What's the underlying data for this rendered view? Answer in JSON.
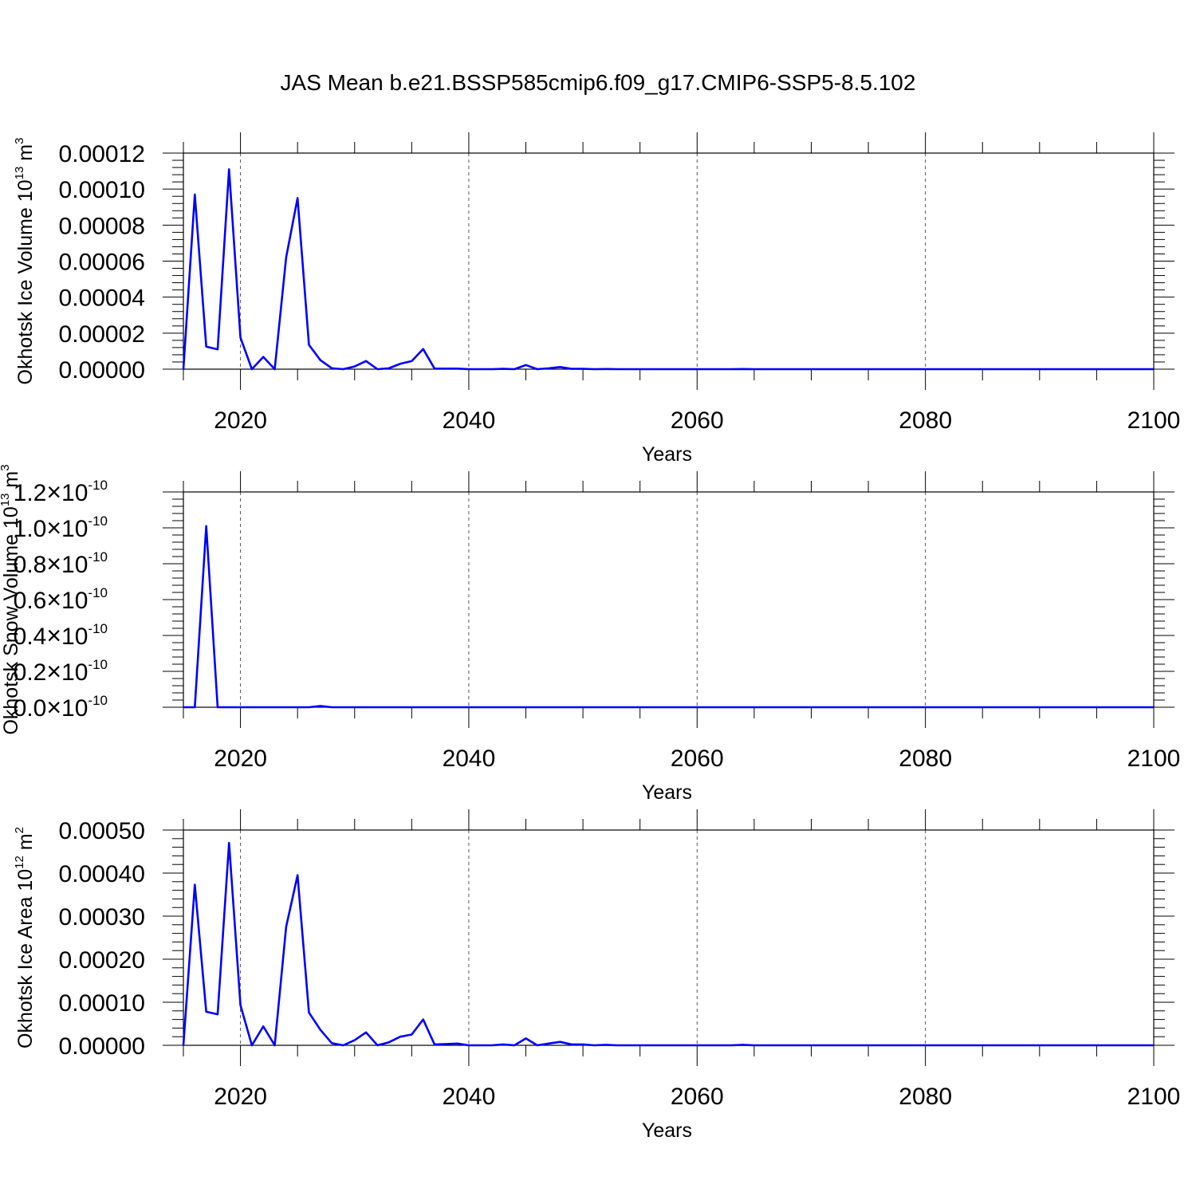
{
  "title": "JAS Mean b.e21.BSSP585cmip6.f09_g17.CMIP6-SSP5-8.5.102",
  "colors": {
    "line": "#0000ff",
    "axis": "#000000",
    "grid": "#000000"
  },
  "chart_data": [
    {
      "type": "line",
      "xlabel": "Years",
      "ylabel": {
        "text": "Okhotsk Ice Volume 10",
        "exp": "13",
        "unit": " m",
        "unit_exp": "3"
      },
      "xlim": [
        2015,
        2100
      ],
      "ylim": [
        0,
        0.00012
      ],
      "xticks": [
        "2020",
        "2040",
        "2060",
        "2080",
        "2100"
      ],
      "yticks": [
        "0.00000",
        "0.00002",
        "0.00004",
        "0.00006",
        "0.00008",
        "0.00010",
        "0.00012"
      ],
      "grid": "dashed vertical lines at major x ticks",
      "x": [
        2015,
        2016,
        2017,
        2018,
        2019,
        2020,
        2021,
        2022,
        2023,
        2024,
        2025,
        2026,
        2027,
        2028,
        2029,
        2030,
        2031,
        2032,
        2033,
        2034,
        2035,
        2036,
        2037,
        2038,
        2039,
        2040,
        2041,
        2042,
        2043,
        2044,
        2045,
        2046,
        2047,
        2048,
        2049,
        2050,
        2051,
        2052,
        2053,
        2054,
        2055,
        2056,
        2057,
        2058,
        2059,
        2060,
        2061,
        2062,
        2063,
        2064,
        2065,
        2066,
        2067,
        2068,
        2069,
        2070,
        2071,
        2072,
        2073,
        2074,
        2075,
        2076,
        2077,
        2078,
        2079,
        2080,
        2081,
        2082,
        2083,
        2084,
        2085,
        2086,
        2087,
        2088,
        2089,
        2090,
        2091,
        2092,
        2093,
        2094,
        2095,
        2096,
        2097,
        2098,
        2099,
        2100
      ],
      "series": [
        {
          "values": [
            0,
            9.7e-05,
            1.25e-05,
            1.1e-05,
            0.000111,
            1.75e-05,
            0,
            6.8e-06,
            0,
            6.2e-05,
            9.5e-05,
            1.35e-05,
            5e-06,
            5e-07,
            0,
            1.5e-06,
            4.5e-06,
            0,
            5e-07,
            3e-06,
            4.5e-06,
            1.12e-05,
            3e-07,
            3e-07,
            3e-07,
            0,
            0,
            0,
            2e-07,
            0,
            2.3e-06,
            0,
            5e-07,
            1.2e-06,
            2e-07,
            2e-07,
            0,
            1e-07,
            0,
            0,
            0,
            0,
            0,
            0,
            0,
            0,
            0,
            0,
            0,
            1e-07,
            0,
            0,
            0,
            0,
            0,
            0,
            0,
            0,
            0,
            0,
            0,
            0,
            0,
            0,
            0,
            0,
            0,
            0,
            0,
            0,
            0,
            0,
            0,
            0,
            0,
            0,
            0,
            0,
            0,
            0,
            0,
            0,
            0,
            0,
            0,
            0
          ]
        }
      ]
    },
    {
      "type": "line",
      "xlabel": "Years",
      "ylabel": {
        "text": "Okhotsk Snow Volume 10",
        "exp": "13",
        "unit": " m",
        "unit_exp": "3"
      },
      "xlim": [
        2015,
        2100
      ],
      "ylim": [
        0,
        1.2e-10
      ],
      "xticks": [
        "2020",
        "2040",
        "2060",
        "2080",
        "2100"
      ],
      "yticks": [
        {
          "mant": "0.0",
          "sep": "×",
          "base": "10",
          "exp": "-10"
        },
        {
          "mant": "0.2",
          "sep": "×",
          "base": "10",
          "exp": "-10"
        },
        {
          "mant": "0.4",
          "sep": "×",
          "base": "10",
          "exp": "-10"
        },
        {
          "mant": "0.6",
          "sep": "×",
          "base": "10",
          "exp": "-10"
        },
        {
          "mant": "0.8",
          "sep": "×",
          "base": "10",
          "exp": "-10"
        },
        {
          "mant": "1.0",
          "sep": "×",
          "base": "10",
          "exp": "-10"
        },
        {
          "mant": "1.2",
          "sep": "×",
          "base": "10",
          "exp": "-10"
        }
      ],
      "grid": "dashed vertical lines at major x ticks",
      "x": [
        2015,
        2016,
        2017,
        2018,
        2019,
        2020,
        2021,
        2022,
        2023,
        2024,
        2025,
        2026,
        2027,
        2028,
        2029,
        2030,
        2031,
        2032,
        2033,
        2034,
        2035,
        2036,
        2037,
        2038,
        2039,
        2040,
        2041,
        2042,
        2043,
        2044,
        2045,
        2046,
        2047,
        2048,
        2049,
        2050,
        2051,
        2052,
        2053,
        2054,
        2055,
        2056,
        2057,
        2058,
        2059,
        2060,
        2061,
        2062,
        2063,
        2064,
        2065,
        2066,
        2067,
        2068,
        2069,
        2070,
        2071,
        2072,
        2073,
        2074,
        2075,
        2076,
        2077,
        2078,
        2079,
        2080,
        2081,
        2082,
        2083,
        2084,
        2085,
        2086,
        2087,
        2088,
        2089,
        2090,
        2091,
        2092,
        2093,
        2094,
        2095,
        2096,
        2097,
        2098,
        2099,
        2100
      ],
      "series": [
        {
          "values": [
            0,
            0,
            1.01e-10,
            0,
            0,
            0,
            0,
            0,
            0,
            0,
            0,
            0,
            7e-13,
            0,
            0,
            0,
            0,
            0,
            0,
            0,
            0,
            0,
            0,
            0,
            0,
            0,
            0,
            0,
            0,
            0,
            0,
            0,
            0,
            0,
            0,
            0,
            0,
            0,
            0,
            0,
            0,
            0,
            0,
            0,
            0,
            0,
            0,
            0,
            0,
            0,
            0,
            0,
            0,
            0,
            0,
            0,
            0,
            0,
            0,
            0,
            0,
            0,
            0,
            0,
            0,
            0,
            0,
            0,
            0,
            0,
            0,
            0,
            0,
            0,
            0,
            0,
            0,
            0,
            0,
            0,
            0,
            0,
            0,
            0,
            0,
            0
          ]
        }
      ]
    },
    {
      "type": "line",
      "xlabel": "Years",
      "ylabel": {
        "text": "Okhotsk Ice Area 10",
        "exp": "12",
        "unit": " m",
        "unit_exp": "2"
      },
      "xlim": [
        2015,
        2100
      ],
      "ylim": [
        0,
        0.0005
      ],
      "xticks": [
        "2020",
        "2040",
        "2060",
        "2080",
        "2100"
      ],
      "yticks": [
        "0.00000",
        "0.00010",
        "0.00020",
        "0.00030",
        "0.00040",
        "0.00050"
      ],
      "grid": "dashed vertical lines at major x ticks",
      "x": [
        2015,
        2016,
        2017,
        2018,
        2019,
        2020,
        2021,
        2022,
        2023,
        2024,
        2025,
        2026,
        2027,
        2028,
        2029,
        2030,
        2031,
        2032,
        2033,
        2034,
        2035,
        2036,
        2037,
        2038,
        2039,
        2040,
        2041,
        2042,
        2043,
        2044,
        2045,
        2046,
        2047,
        2048,
        2049,
        2050,
        2051,
        2052,
        2053,
        2054,
        2055,
        2056,
        2057,
        2058,
        2059,
        2060,
        2061,
        2062,
        2063,
        2064,
        2065,
        2066,
        2067,
        2068,
        2069,
        2070,
        2071,
        2072,
        2073,
        2074,
        2075,
        2076,
        2077,
        2078,
        2079,
        2080,
        2081,
        2082,
        2083,
        2084,
        2085,
        2086,
        2087,
        2088,
        2089,
        2090,
        2091,
        2092,
        2093,
        2094,
        2095,
        2096,
        2097,
        2098,
        2099,
        2100
      ],
      "series": [
        {
          "values": [
            0,
            0.000373,
            7.8e-05,
            7.2e-05,
            0.00047,
            9.3e-05,
            0,
            4.4e-05,
            0,
            0.000275,
            0.000395,
            7.6e-05,
            3.6e-05,
            5e-06,
            0,
            1.2e-05,
            3e-05,
            0,
            7e-06,
            2e-05,
            2.5e-05,
            6e-05,
            2e-06,
            3e-06,
            4e-06,
            0,
            0,
            0,
            2e-06,
            0,
            1.6e-05,
            0,
            4e-06,
            8e-06,
            2e-06,
            2e-06,
            0,
            1e-06,
            0,
            0,
            0,
            0,
            0,
            0,
            0,
            0,
            0,
            0,
            0,
            1e-06,
            0,
            0,
            0,
            0,
            0,
            0,
            0,
            0,
            0,
            0,
            0,
            0,
            0,
            0,
            0,
            0,
            0,
            0,
            0,
            0,
            0,
            0,
            0,
            0,
            0,
            0,
            0,
            0,
            0,
            0,
            0,
            0,
            0,
            0,
            0,
            0
          ]
        }
      ]
    }
  ]
}
